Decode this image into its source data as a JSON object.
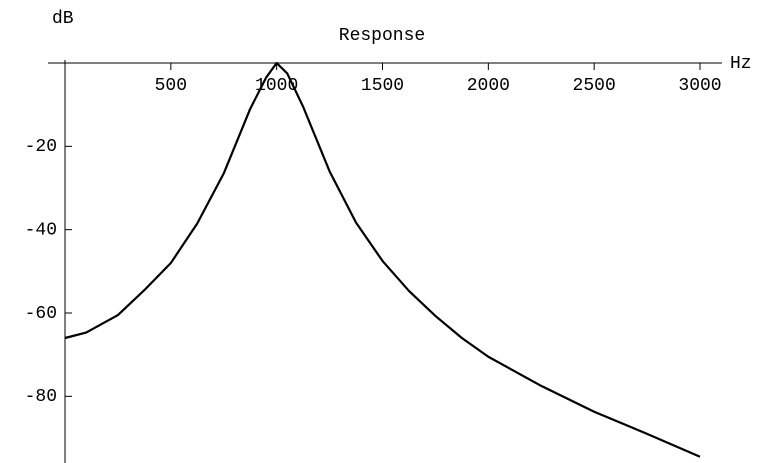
{
  "chart_data": {
    "type": "line",
    "title": "Response",
    "x_label": "Hz",
    "y_label": "dB",
    "x": [
      0,
      100,
      250,
      375,
      500,
      625,
      750,
      875,
      950,
      1000,
      1050,
      1125,
      1250,
      1375,
      1500,
      1625,
      1750,
      1875,
      2000,
      2250,
      2500,
      2750,
      3000
    ],
    "series": [
      {
        "name": "Response",
        "color": "#000000",
        "values": [
          -66,
          -64.7,
          -60.5,
          -54.5,
          -48,
          -38.5,
          -26.5,
          -11,
          -3.5,
          0,
          -2.5,
          -10.5,
          -26,
          -38.3,
          -47.5,
          -54.7,
          -60.7,
          -66,
          -70.5,
          -77.5,
          -83.7,
          -89,
          -94.5
        ]
      }
    ],
    "xlim": [
      0,
      3000
    ],
    "ylim": [
      -96,
      0
    ],
    "xticks": [
      500,
      1000,
      1500,
      2000,
      2500,
      3000
    ],
    "yticks": [
      -20,
      -40,
      -60,
      -80
    ]
  }
}
